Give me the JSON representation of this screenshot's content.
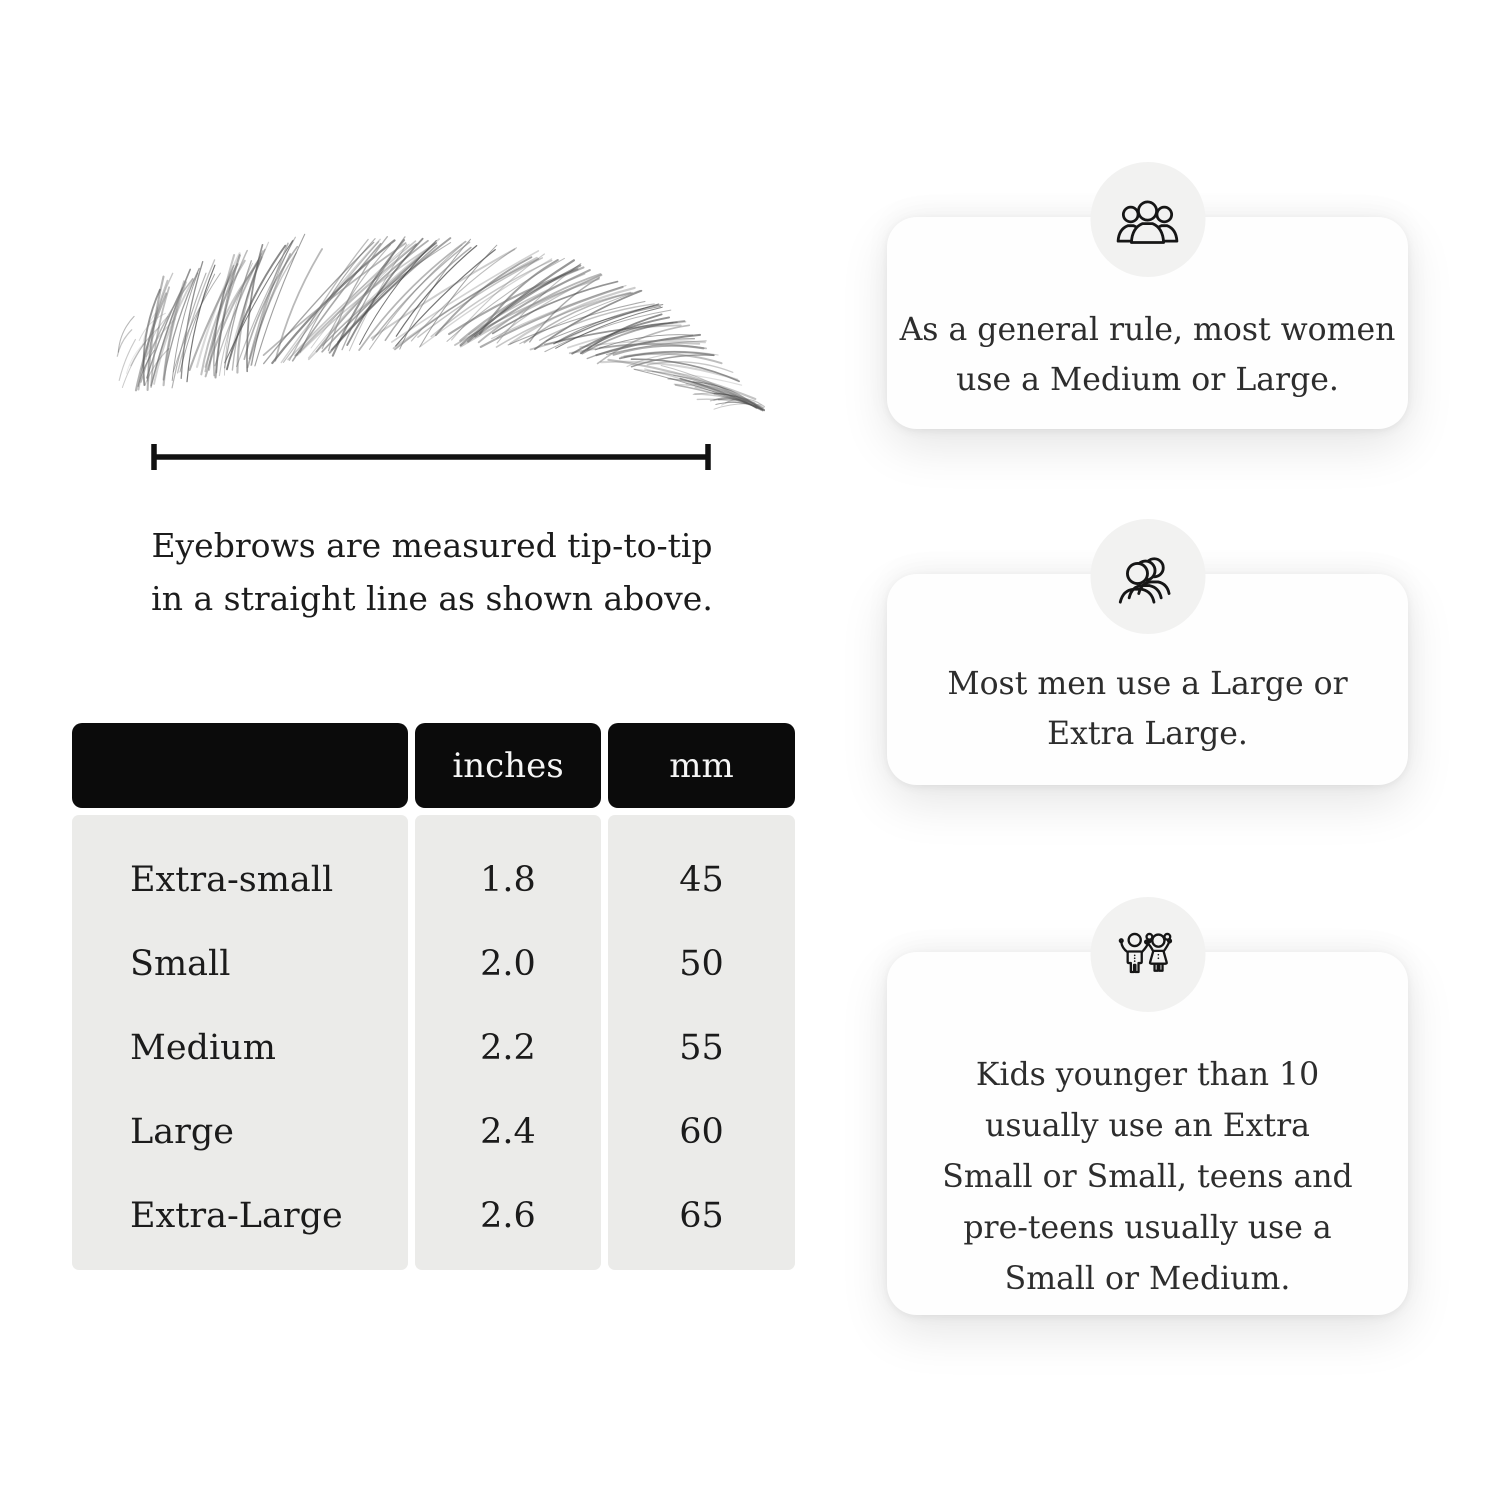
{
  "diagram": {
    "caption_lines": [
      "Eyebrows are measured tip-to-tip",
      "in a straight line as shown above."
    ]
  },
  "size_table": {
    "headers": [
      "",
      "inches",
      "mm"
    ],
    "rows": [
      {
        "label": "Extra-small",
        "inches": "1.8",
        "mm": "45"
      },
      {
        "label": "Small",
        "inches": "2.0",
        "mm": "50"
      },
      {
        "label": "Medium",
        "inches": "2.2",
        "mm": "55"
      },
      {
        "label": "Large",
        "inches": "2.4",
        "mm": "60"
      },
      {
        "label": "Extra-Large",
        "inches": "2.6",
        "mm": "65"
      }
    ],
    "colors": {
      "header_bg": "#0b0b0b",
      "header_text": "#f6f6f6",
      "body_bg": "#ebebe9",
      "text": "#1b1b1b"
    }
  },
  "cards": [
    {
      "icon": "women-group-icon",
      "lines": [
        "As a general rule, most women",
        "use a Medium or Large."
      ]
    },
    {
      "icon": "men-group-icon",
      "lines": [
        "Most men use a Large or",
        "Extra Large."
      ]
    },
    {
      "icon": "kids-icon",
      "lines": [
        "Kids younger than 10",
        "usually use an Extra",
        "Small or Small, teens and",
        "pre-teens usually use a",
        "Small or Medium."
      ]
    }
  ]
}
